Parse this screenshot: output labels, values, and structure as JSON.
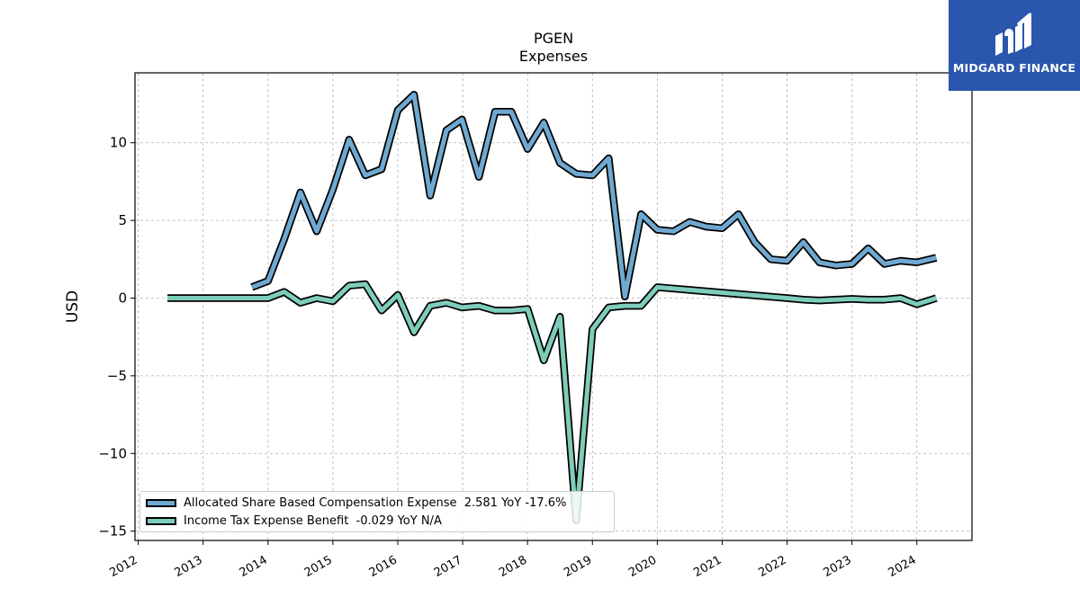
{
  "logo": {
    "text": "MIDGARD FINANCE",
    "bg_color": "#2a56ad"
  },
  "chart_data": {
    "type": "line",
    "title": "PGEN",
    "subtitle": "Expenses",
    "xlabel": "",
    "ylabel": "USD",
    "xlim": [
      2011.95,
      2024.85
    ],
    "ylim": [
      -15.6,
      14.5
    ],
    "x_ticks": [
      2012,
      2013,
      2014,
      2015,
      2016,
      2017,
      2018,
      2019,
      2020,
      2021,
      2022,
      2023,
      2024
    ],
    "x_tick_labels": [
      "2012",
      "2013",
      "2014",
      "2015",
      "2016",
      "2017",
      "2018",
      "2019",
      "2020",
      "2021",
      "2022",
      "2023",
      "2024"
    ],
    "y_ticks": [
      -15,
      -10,
      -5,
      0,
      5,
      10
    ],
    "y_tick_labels": [
      "−15",
      "−10",
      "−5",
      "0",
      "5",
      "10"
    ],
    "grid": true,
    "legend_position": "lower-left",
    "series": [
      {
        "name": "Allocated Share Based Compensation Expense  2.581 YoY -17.6%",
        "color": "#6fa8d0",
        "points": [
          [
            2013.75,
            0.7
          ],
          [
            2014.0,
            1.1
          ],
          [
            2014.25,
            3.8
          ],
          [
            2014.5,
            6.8
          ],
          [
            2014.75,
            4.3
          ],
          [
            2015.0,
            7.0
          ],
          [
            2015.25,
            10.2
          ],
          [
            2015.5,
            7.9
          ],
          [
            2015.75,
            8.3
          ],
          [
            2016.0,
            12.1
          ],
          [
            2016.25,
            13.1
          ],
          [
            2016.5,
            6.6
          ],
          [
            2016.75,
            10.8
          ],
          [
            2016.99,
            11.5
          ],
          [
            2017.25,
            7.8
          ],
          [
            2017.5,
            12.0
          ],
          [
            2017.75,
            12.0
          ],
          [
            2018.0,
            9.6
          ],
          [
            2018.25,
            11.3
          ],
          [
            2018.5,
            8.7
          ],
          [
            2018.75,
            8.0
          ],
          [
            2019.0,
            7.9
          ],
          [
            2019.25,
            9.0
          ],
          [
            2019.5,
            0.1
          ],
          [
            2019.75,
            5.4
          ],
          [
            2020.0,
            4.4
          ],
          [
            2020.25,
            4.3
          ],
          [
            2020.5,
            4.9
          ],
          [
            2020.75,
            4.6
          ],
          [
            2021.0,
            4.5
          ],
          [
            2021.25,
            5.4
          ],
          [
            2021.5,
            3.6
          ],
          [
            2021.75,
            2.5
          ],
          [
            2022.0,
            2.4
          ],
          [
            2022.25,
            3.6
          ],
          [
            2022.5,
            2.3
          ],
          [
            2022.75,
            2.1
          ],
          [
            2023.0,
            2.2
          ],
          [
            2023.25,
            3.2
          ],
          [
            2023.5,
            2.2
          ],
          [
            2023.75,
            2.4
          ],
          [
            2024.0,
            2.3
          ],
          [
            2024.3,
            2.6
          ]
        ]
      },
      {
        "name": "Income Tax Expense Benefit  -0.029 YoY N/A",
        "color": "#7ecdbb",
        "points": [
          [
            2012.45,
            0.0
          ],
          [
            2013.0,
            0.0
          ],
          [
            2013.5,
            0.0
          ],
          [
            2014.0,
            0.0
          ],
          [
            2014.25,
            0.4
          ],
          [
            2014.5,
            -0.3
          ],
          [
            2014.75,
            0.0
          ],
          [
            2015.0,
            -0.2
          ],
          [
            2015.25,
            0.8
          ],
          [
            2015.5,
            0.9
          ],
          [
            2015.75,
            -0.8
          ],
          [
            2016.0,
            0.2
          ],
          [
            2016.25,
            -2.2
          ],
          [
            2016.5,
            -0.5
          ],
          [
            2016.75,
            -0.3
          ],
          [
            2016.99,
            -0.6
          ],
          [
            2017.25,
            -0.5
          ],
          [
            2017.5,
            -0.8
          ],
          [
            2017.75,
            -0.8
          ],
          [
            2018.0,
            -0.7
          ],
          [
            2018.25,
            -4.0
          ],
          [
            2018.5,
            -1.2
          ],
          [
            2018.75,
            -14.3
          ],
          [
            2019.0,
            -2.0
          ],
          [
            2019.25,
            -0.6
          ],
          [
            2019.5,
            -0.5
          ],
          [
            2019.75,
            -0.5
          ],
          [
            2020.0,
            0.7
          ],
          [
            2022.0,
            0.0
          ],
          [
            2022.25,
            -0.1
          ],
          [
            2022.5,
            -0.15
          ],
          [
            2022.75,
            -0.1
          ],
          [
            2023.0,
            -0.05
          ],
          [
            2023.25,
            -0.1
          ],
          [
            2023.5,
            -0.1
          ],
          [
            2023.75,
            0.0
          ],
          [
            2024.0,
            -0.4
          ],
          [
            2024.3,
            0.0
          ]
        ]
      }
    ]
  }
}
